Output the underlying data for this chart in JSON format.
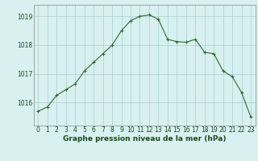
{
  "x": [
    0,
    1,
    2,
    3,
    4,
    5,
    6,
    7,
    8,
    9,
    10,
    11,
    12,
    13,
    14,
    15,
    16,
    17,
    18,
    19,
    20,
    21,
    22,
    23
  ],
  "y": [
    1015.7,
    1015.85,
    1016.25,
    1016.45,
    1016.65,
    1017.1,
    1017.4,
    1017.7,
    1018.0,
    1018.5,
    1018.85,
    1019.0,
    1019.05,
    1018.9,
    1018.2,
    1018.12,
    1018.1,
    1018.2,
    1017.75,
    1017.7,
    1017.1,
    1016.9,
    1016.35,
    1015.5
  ],
  "line_color": "#2d6a2d",
  "marker": "+",
  "marker_size": 3,
  "marker_edge_width": 0.8,
  "line_width": 0.8,
  "bg_color": "#d8f0f0",
  "grid_color": "#aacece",
  "xlabel": "Graphe pression niveau de la mer (hPa)",
  "xlabel_fontsize": 6.5,
  "xlabel_color": "#1a4a1a",
  "tick_color": "#1a4a1a",
  "tick_fontsize": 5.5,
  "xlim": [
    -0.5,
    23.5
  ],
  "ylim": [
    1015.2,
    1019.4
  ],
  "yticks": [
    1016,
    1017,
    1018,
    1019
  ],
  "xticks": [
    0,
    1,
    2,
    3,
    4,
    5,
    6,
    7,
    8,
    9,
    10,
    11,
    12,
    13,
    14,
    15,
    16,
    17,
    18,
    19,
    20,
    21,
    22,
    23
  ]
}
